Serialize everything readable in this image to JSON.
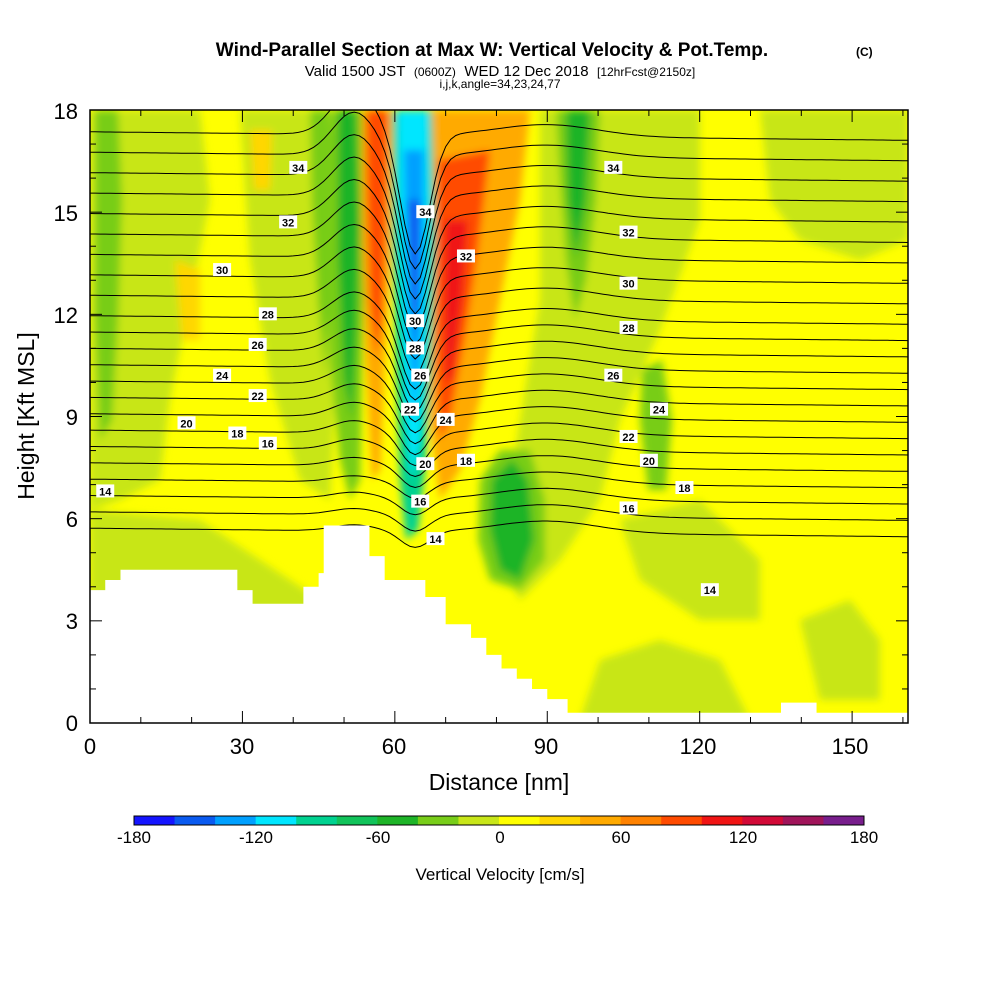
{
  "title": {
    "main": "Wind-Parallel Section at Max W: Vertical Velocity & Pot.Temp.",
    "main_suffix": "(C)",
    "valid_a": "Valid 1500 JST",
    "valid_b": "(0600Z)",
    "valid_c": "WED 12 Dec 2018",
    "valid_d": "[12hrFcst@2150z]",
    "indices": "i,j,k,angle=34,23,24,77"
  },
  "chart_data": {
    "type": "heatmap",
    "xlabel": "Distance [nm]",
    "ylabel": "Height [Kft MSL]",
    "xlim": [
      0,
      161
    ],
    "ylim": [
      0,
      18
    ],
    "x_ticks": [
      "0",
      "30",
      "60",
      "90",
      "120",
      "150"
    ],
    "y_ticks": [
      "0",
      "3",
      "6",
      "9",
      "12",
      "15",
      "18"
    ],
    "colorbar": {
      "label": "Vertical Velocity [cm/s]",
      "ticks": [
        "-180",
        "-120",
        "-60",
        "0",
        "60",
        "120",
        "180"
      ],
      "levels": [
        -180,
        -160,
        -140,
        -120,
        -100,
        -80,
        -60,
        -40,
        -20,
        0,
        20,
        40,
        60,
        80,
        100,
        120,
        140,
        160,
        180
      ],
      "colors": [
        "#1414ff",
        "#0a5af0",
        "#00a0ff",
        "#00e6ff",
        "#00d290",
        "#11c35a",
        "#1eb428",
        "#78cd19",
        "#c8e619",
        "#ffff00",
        "#ffd700",
        "#ffaa00",
        "#ff8200",
        "#ff4b00",
        "#f01414",
        "#d20a37",
        "#a0145a",
        "#781e8c"
      ]
    },
    "velocity_features": [
      {
        "x": 9,
        "y": 11,
        "value": -40
      },
      {
        "x": 40,
        "y": 11,
        "value": -30
      },
      {
        "x": 51,
        "y": 10,
        "value": -70
      },
      {
        "x": 56,
        "y": 12,
        "value": 120
      },
      {
        "x": 63,
        "y": 11,
        "value": -140
      },
      {
        "x": 69,
        "y": 12,
        "value": 110
      },
      {
        "x": 82,
        "y": 5,
        "value": -50
      },
      {
        "x": 95,
        "y": 14,
        "value": -50
      },
      {
        "x": 108,
        "y": 9,
        "value": -20
      },
      {
        "x": 145,
        "y": 2,
        "value": 20
      }
    ],
    "theta_contour_labels": [
      {
        "text": "34",
        "x": 41,
        "y": 16.3
      },
      {
        "text": "34",
        "x": 66,
        "y": 15.0
      },
      {
        "text": "34",
        "x": 103,
        "y": 16.3
      },
      {
        "text": "32",
        "x": 39,
        "y": 14.7
      },
      {
        "text": "32",
        "x": 74,
        "y": 13.7
      },
      {
        "text": "32",
        "x": 106,
        "y": 14.4
      },
      {
        "text": "30",
        "x": 26,
        "y": 13.3
      },
      {
        "text": "30",
        "x": 106,
        "y": 12.9
      },
      {
        "text": "28",
        "x": 35,
        "y": 12.0
      },
      {
        "text": "28",
        "x": 106,
        "y": 11.6
      },
      {
        "text": "30",
        "x": 64,
        "y": 11.8
      },
      {
        "text": "28",
        "x": 64,
        "y": 11.0
      },
      {
        "text": "26",
        "x": 33,
        "y": 11.1
      },
      {
        "text": "26",
        "x": 65,
        "y": 10.2
      },
      {
        "text": "26",
        "x": 103,
        "y": 10.2
      },
      {
        "text": "24",
        "x": 26,
        "y": 10.2
      },
      {
        "text": "24",
        "x": 70,
        "y": 8.9
      },
      {
        "text": "24",
        "x": 112,
        "y": 9.2
      },
      {
        "text": "22",
        "x": 33,
        "y": 9.6
      },
      {
        "text": "22",
        "x": 63,
        "y": 9.2
      },
      {
        "text": "22",
        "x": 106,
        "y": 8.4
      },
      {
        "text": "20",
        "x": 19,
        "y": 8.8
      },
      {
        "text": "20",
        "x": 66,
        "y": 7.6
      },
      {
        "text": "20",
        "x": 110,
        "y": 7.7
      },
      {
        "text": "18",
        "x": 29,
        "y": 8.5
      },
      {
        "text": "18",
        "x": 74,
        "y": 7.7
      },
      {
        "text": "18",
        "x": 117,
        "y": 6.9
      },
      {
        "text": "16",
        "x": 35,
        "y": 8.2
      },
      {
        "text": "16",
        "x": 65,
        "y": 6.5
      },
      {
        "text": "16",
        "x": 106,
        "y": 6.3
      },
      {
        "text": "14",
        "x": 3,
        "y": 6.8
      },
      {
        "text": "14",
        "x": 68,
        "y": 5.4
      },
      {
        "text": "14",
        "x": 122,
        "y": 3.9
      }
    ],
    "terrain_heights": [
      [
        0,
        3.9
      ],
      [
        3,
        4.2
      ],
      [
        6,
        4.5
      ],
      [
        29,
        3.9
      ],
      [
        32,
        3.5
      ],
      [
        42,
        4.0
      ],
      [
        45,
        4.4
      ],
      [
        46,
        5.8
      ],
      [
        55,
        4.9
      ],
      [
        58,
        4.2
      ],
      [
        66,
        3.7
      ],
      [
        70,
        2.9
      ],
      [
        75,
        2.5
      ],
      [
        78,
        2.0
      ],
      [
        81,
        1.6
      ],
      [
        84,
        1.3
      ],
      [
        87,
        1.0
      ],
      [
        90,
        0.7
      ],
      [
        94,
        0.3
      ],
      [
        98,
        0.3
      ],
      [
        136,
        0.6
      ],
      [
        143,
        0.3
      ],
      [
        161,
        0.3
      ]
    ]
  }
}
